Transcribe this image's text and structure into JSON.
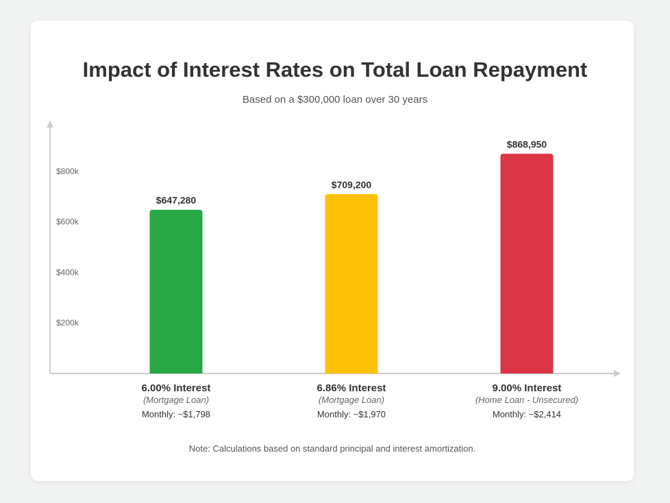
{
  "chart_data": {
    "type": "bar",
    "title": "Impact of Interest Rates on Total Loan Repayment",
    "subtitle": "Based on a $300,000 loan over 30 years",
    "categories": [
      "6.00% Interest",
      "6.86% Interest",
      "9.00% Interest"
    ],
    "values": [
      647280,
      709200,
      868950
    ],
    "value_labels": [
      "$647,280",
      "$709,200",
      "$868,950"
    ],
    "loan_types": [
      "(Mortgage Loan)",
      "(Mortgage Loan)",
      "(Home Loan - Unsecured)"
    ],
    "monthly_labels": [
      "Monthly: ~$1,798",
      "Monthly: ~$1,970",
      "Monthly: ~$2,414"
    ],
    "colors": [
      "#28a745",
      "#ffc107",
      "#dc3545"
    ],
    "y_ticks": [
      200000,
      400000,
      600000,
      800000
    ],
    "y_tick_labels": [
      "$200k",
      "$400k",
      "$600k",
      "$800k"
    ],
    "ylim": [
      0,
      1000000
    ],
    "grid": false,
    "note": "Note: Calculations based on standard principal and interest amortization."
  }
}
